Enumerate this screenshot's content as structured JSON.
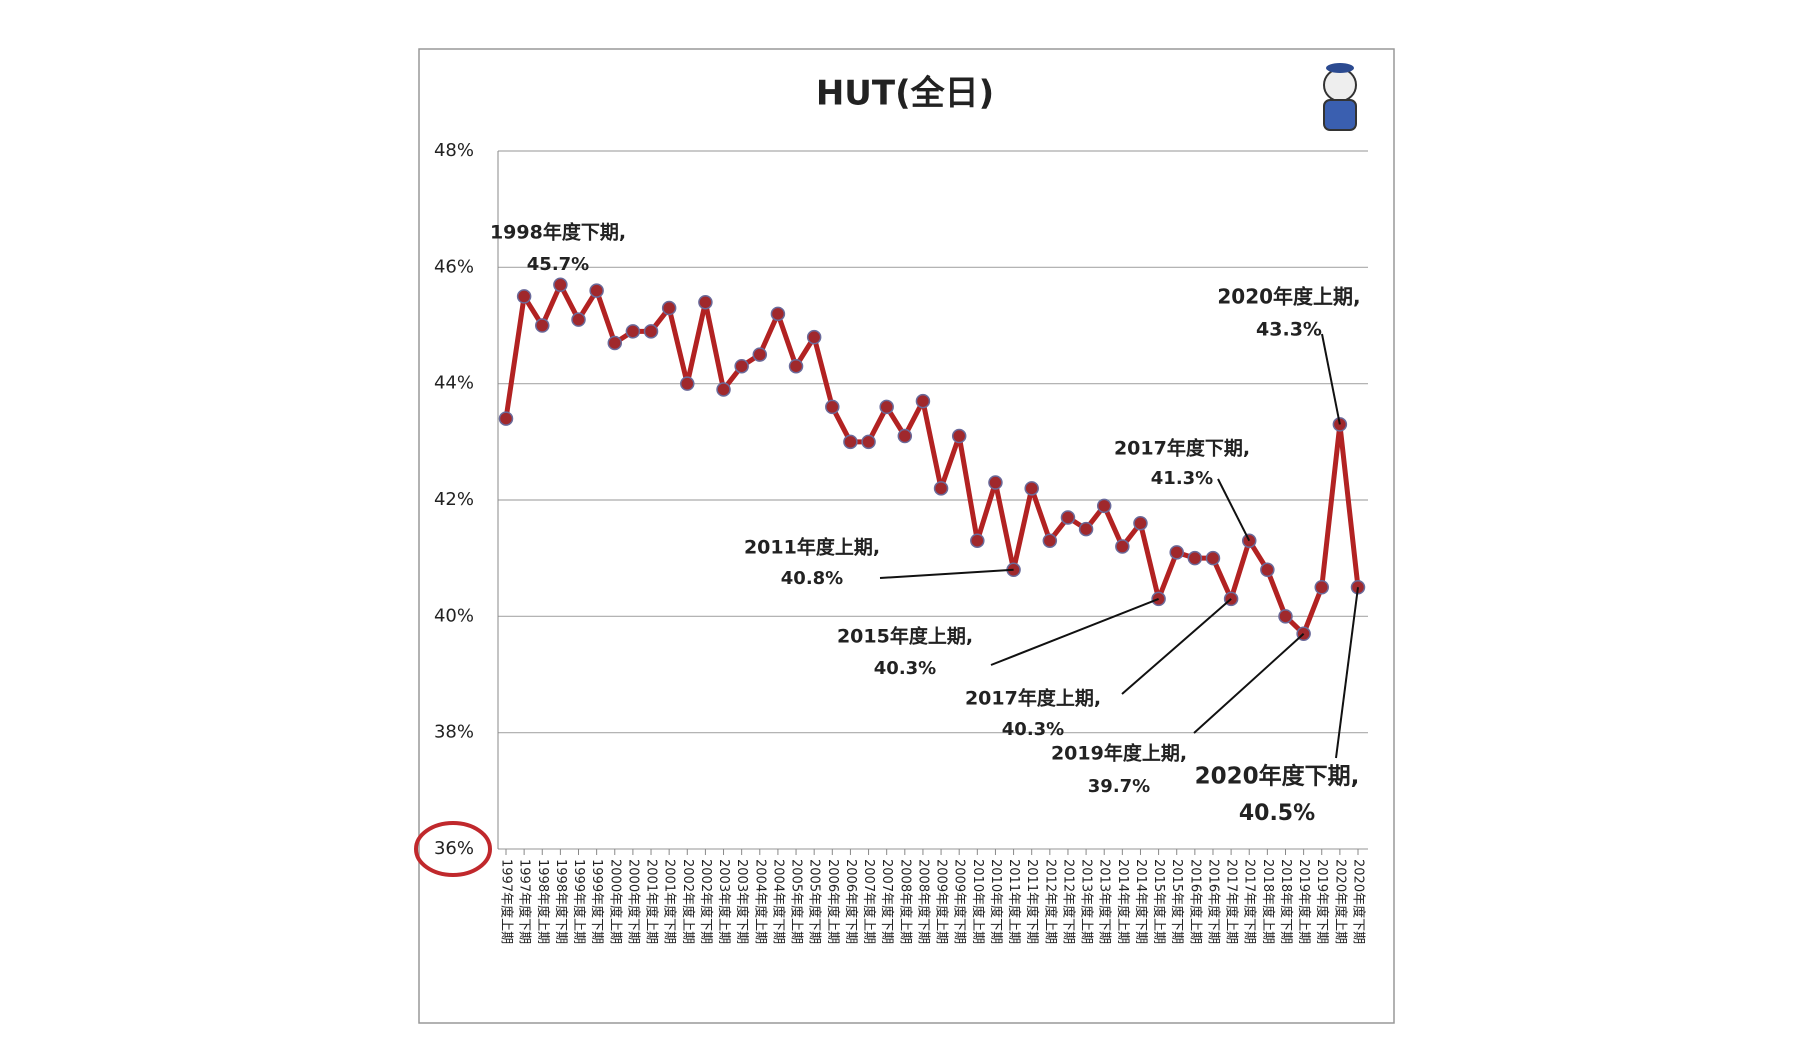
{
  "chart_data": {
    "type": "line",
    "title": "HUT(全日)",
    "categories": [
      "1997年度上期",
      "1997年度下期",
      "1998年度上期",
      "1998年度下期",
      "1999年度上期",
      "1999年度下期",
      "2000年度上期",
      "2000年度下期",
      "2001年度上期",
      "2001年度下期",
      "2002年度上期",
      "2002年度下期",
      "2003年度上期",
      "2003年度下期",
      "2004年度上期",
      "2004年度下期",
      "2005年度上期",
      "2005年度下期",
      "2006年度上期",
      "2006年度下期",
      "2007年度上期",
      "2007年度下期",
      "2008年度上期",
      "2008年度下期",
      "2009年度上期",
      "2009年度下期",
      "2010年度上期",
      "2010年度下期",
      "2011年度上期",
      "2011年度下期",
      "2012年度上期",
      "2012年度下期",
      "2013年度上期",
      "2013年度下期",
      "2014年度上期",
      "2014年度下期",
      "2015年度上期",
      "2015年度下期",
      "2016年度上期",
      "2016年度下期",
      "2017年度上期",
      "2017年度下期",
      "2018年度上期",
      "2018年度下期",
      "2019年度上期",
      "2019年度下期",
      "2020年度上期",
      "2020年度下期"
    ],
    "values": [
      43.4,
      45.5,
      45.0,
      45.7,
      45.1,
      45.6,
      44.7,
      44.9,
      44.9,
      45.3,
      44.0,
      45.4,
      43.9,
      44.3,
      44.5,
      45.2,
      44.3,
      44.8,
      43.6,
      43.0,
      43.0,
      43.6,
      43.1,
      43.7,
      42.2,
      43.1,
      41.3,
      42.3,
      40.8,
      42.2,
      41.3,
      41.7,
      41.5,
      41.9,
      41.2,
      41.6,
      40.3,
      41.1,
      41.0,
      41.0,
      40.3,
      41.3,
      40.8,
      40.0,
      39.7,
      40.5,
      43.3,
      40.5
    ],
    "color": "#b22222",
    "ylim": [
      36,
      48
    ],
    "yticks": [
      {
        "value": 36,
        "label": "36%"
      },
      {
        "value": 38,
        "label": "38%"
      },
      {
        "value": 40,
        "label": "40%"
      },
      {
        "value": 42,
        "label": "42%"
      },
      {
        "value": 44,
        "label": "44%"
      },
      {
        "value": 46,
        "label": "46%"
      },
      {
        "value": 48,
        "label": "48%"
      }
    ],
    "grid": true,
    "annotations": [
      {
        "text": "1998年度下期,",
        "value": 45.7,
        "value_label": "45.7%"
      },
      {
        "text": "2020年度上期,",
        "value": 43.3,
        "value_label": "43.3%"
      },
      {
        "text": "2017年度下期,",
        "value": 41.3,
        "value_label": "41.3%"
      },
      {
        "text": "2011年度上期,",
        "value": 40.8,
        "value_label": "40.8%"
      },
      {
        "text": "2015年度上期,",
        "value": 40.3,
        "value_label": "40.3%"
      },
      {
        "text": "2017年度上期,",
        "value": 40.3,
        "value_label": "40.3%"
      },
      {
        "text": "2019年度上期,",
        "value": 39.7,
        "value_label": "39.7%"
      },
      {
        "text": "2020年度下期,",
        "value": 40.5,
        "value_label": "40.5%"
      }
    ]
  }
}
